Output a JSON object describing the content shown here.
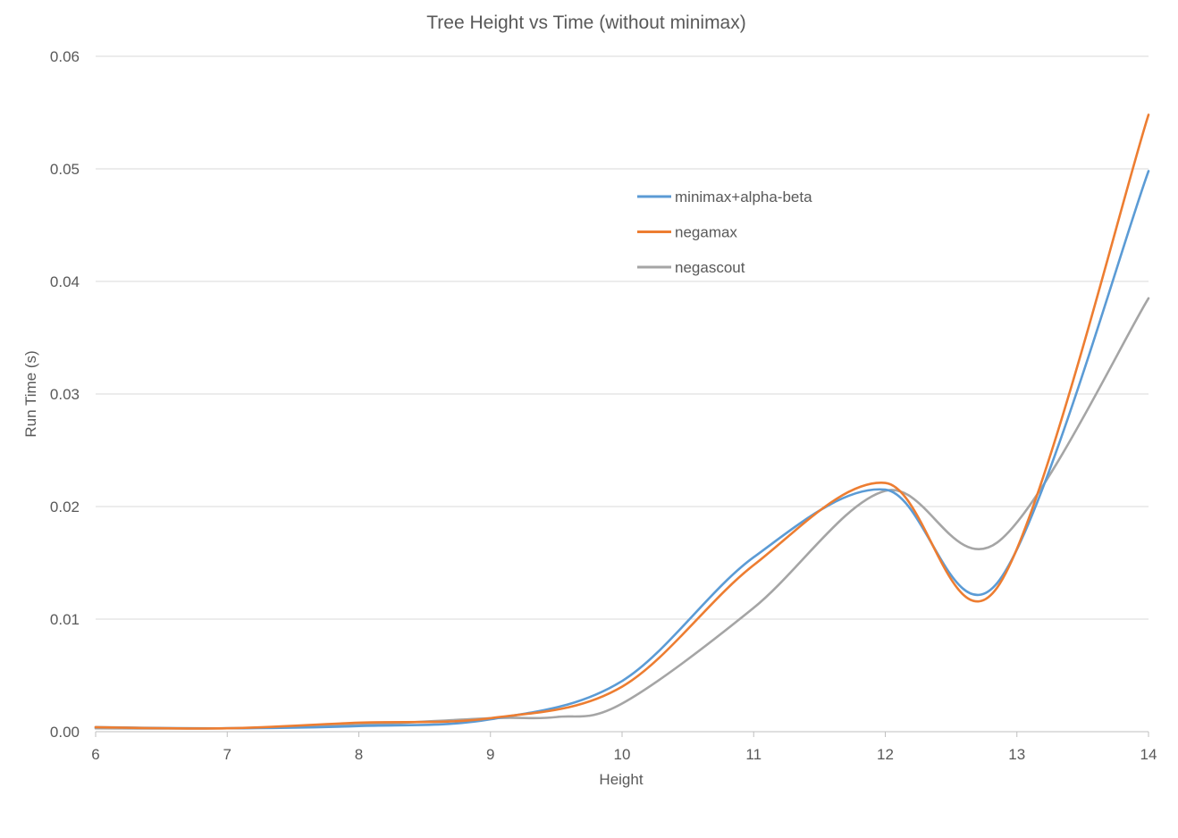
{
  "chart_data": {
    "type": "line",
    "title": "Tree Height vs Time (without minimax)",
    "xlabel": "Height",
    "ylabel": "Run Time (s)",
    "x": [
      6,
      7,
      8,
      9,
      10,
      11,
      12,
      13,
      14
    ],
    "xlim": [
      6,
      14
    ],
    "ylim": [
      0,
      0.06
    ],
    "x_ticks": [
      6,
      7,
      8,
      9,
      10,
      11,
      12,
      13,
      14
    ],
    "y_ticks": [
      "0.00",
      "0.01",
      "0.02",
      "0.03",
      "0.04",
      "0.05",
      "0.06"
    ],
    "grid": true,
    "smooth": true,
    "legend_position": "inside-top-center",
    "series": [
      {
        "name": "minimax+alpha-beta",
        "color": "#5b9bd5",
        "x": [
          6,
          7,
          8,
          9,
          10,
          11,
          12,
          12.85,
          14
        ],
        "values": [
          0.0004,
          0.0003,
          0.0005,
          0.0011,
          0.0045,
          0.0155,
          0.0215,
          0.0132,
          0.0498
        ]
      },
      {
        "name": "negamax",
        "color": "#ed7d31",
        "x": [
          6,
          7,
          8,
          9,
          10,
          11,
          12,
          12.85,
          14
        ],
        "values": [
          0.0004,
          0.0003,
          0.0008,
          0.0012,
          0.004,
          0.0148,
          0.0221,
          0.0128,
          0.0548
        ]
      },
      {
        "name": "negascout",
        "color": "#a5a5a5",
        "x": [
          6,
          7,
          8,
          9,
          9.5,
          10,
          11,
          12,
          12.85,
          14
        ],
        "values": [
          0.0003,
          0.0003,
          0.0006,
          0.0012,
          0.0013,
          0.0025,
          0.011,
          0.0214,
          0.0168,
          0.0385
        ]
      }
    ]
  }
}
